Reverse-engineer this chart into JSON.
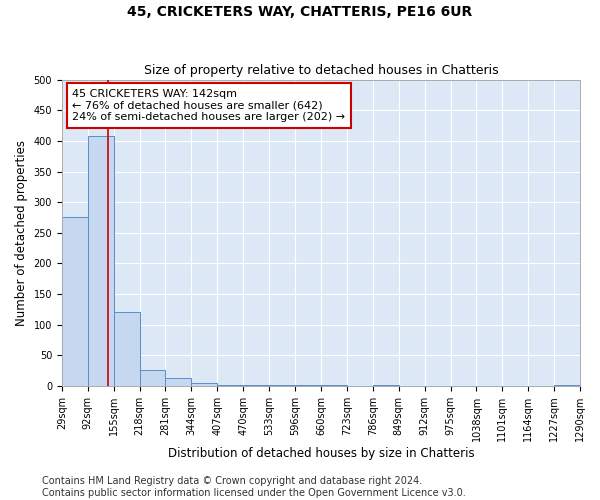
{
  "title": "45, CRICKETERS WAY, CHATTERIS, PE16 6UR",
  "subtitle": "Size of property relative to detached houses in Chatteris",
  "xlabel": "Distribution of detached houses by size in Chatteris",
  "ylabel": "Number of detached properties",
  "bin_edges": [
    29,
    92,
    155,
    218,
    281,
    344,
    407,
    470,
    533,
    596,
    660,
    723,
    786,
    849,
    912,
    975,
    1038,
    1101,
    1164,
    1227,
    1290
  ],
  "bin_heights": [
    275,
    408,
    121,
    27,
    14,
    5,
    2,
    1,
    1,
    1,
    1,
    0,
    1,
    0,
    0,
    0,
    0,
    0,
    0,
    1
  ],
  "bar_color": "#c5d8f0",
  "bar_edge_color": "#5b8dc8",
  "property_size": 142,
  "vline_color": "#cc0000",
  "annotation_line1": "45 CRICKETERS WAY: 142sqm",
  "annotation_line2": "← 76% of detached houses are smaller (642)",
  "annotation_line3": "24% of semi-detached houses are larger (202) →",
  "annotation_box_color": "#ffffff",
  "annotation_box_edge_color": "#cc0000",
  "ylim": [
    0,
    500
  ],
  "yticks": [
    0,
    50,
    100,
    150,
    200,
    250,
    300,
    350,
    400,
    450,
    500
  ],
  "footer_line1": "Contains HM Land Registry data © Crown copyright and database right 2024.",
  "footer_line2": "Contains public sector information licensed under the Open Government Licence v3.0.",
  "bg_color": "#dce8f5",
  "grid_color": "#ffffff",
  "title_fontsize": 10,
  "subtitle_fontsize": 9,
  "axis_label_fontsize": 8.5,
  "tick_fontsize": 7,
  "annotation_fontsize": 8,
  "footer_fontsize": 7
}
